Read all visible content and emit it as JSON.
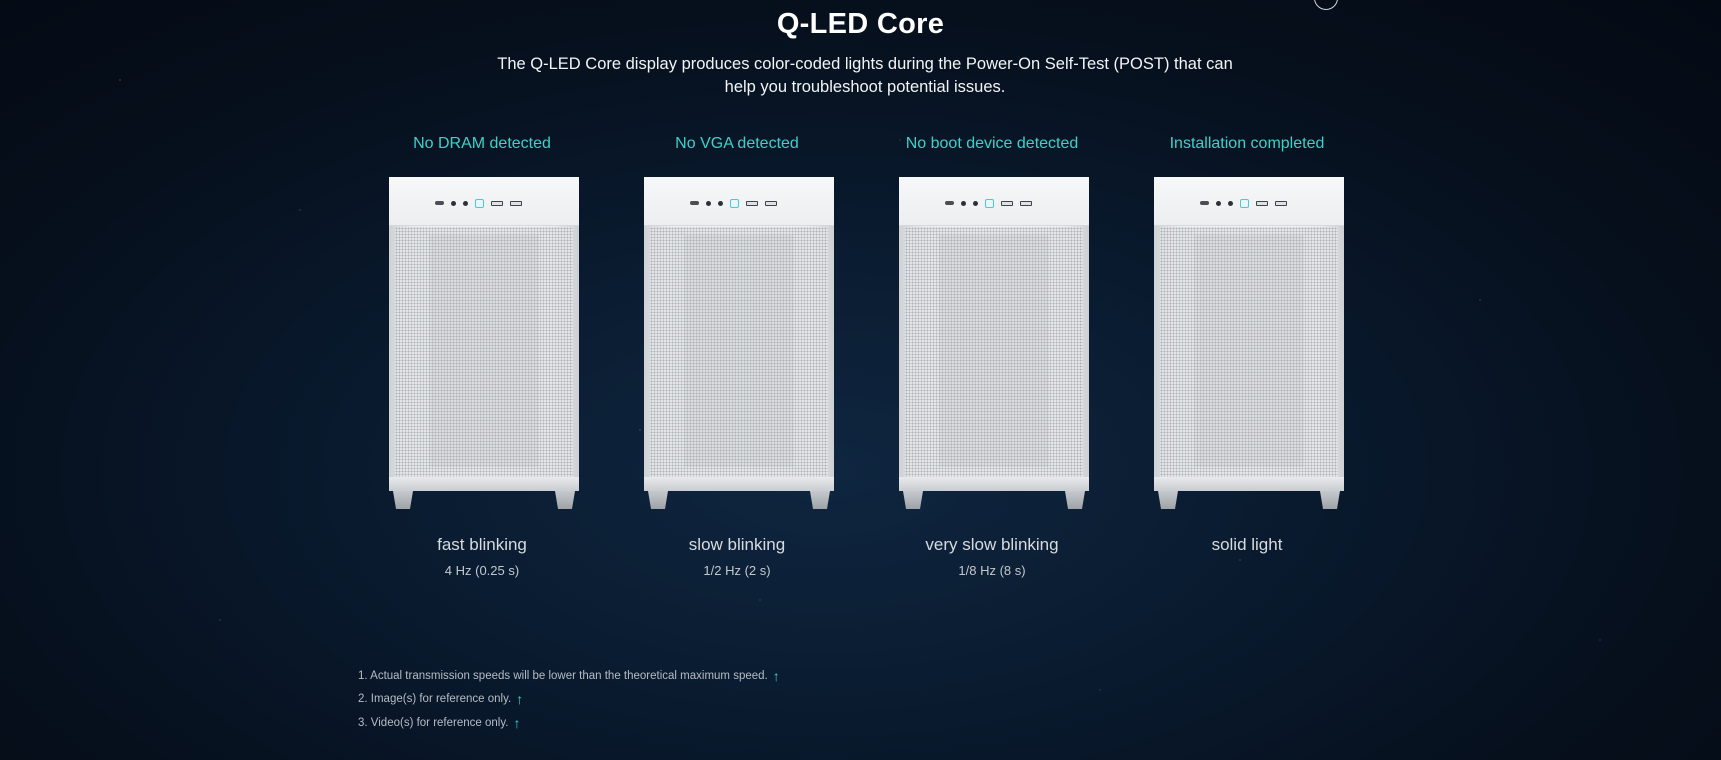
{
  "page": {
    "title": "Q-LED Core",
    "subtitle": "The Q-LED Core display produces color-coded lights during the Power-On Self-Test (POST) that can help you troubleshoot potential issues."
  },
  "states": [
    {
      "heading": "No DRAM detected",
      "mode": "fast blinking",
      "rate": "4 Hz (0.25 s)"
    },
    {
      "heading": "No VGA detected",
      "mode": "slow blinking",
      "rate": "1/2 Hz (2 s)"
    },
    {
      "heading": "No boot device detected",
      "mode": "very slow blinking",
      "rate": "1/8 Hz (8 s)"
    },
    {
      "heading": "Installation completed",
      "mode": "solid light",
      "rate": ""
    }
  ],
  "footnotes": [
    {
      "text": "1. Actual transmission speeds will be lower than the theoretical maximum speed.",
      "icon": "arrow-up-icon"
    },
    {
      "text": "2. Image(s) for reference only.",
      "icon": "arrow-up-icon"
    },
    {
      "text": "3. Video(s) for reference only.",
      "icon": "arrow-up-icon"
    }
  ],
  "colors": {
    "accent": "#3ed1c8",
    "background": "#091a2e",
    "led": "#49c9d4"
  }
}
